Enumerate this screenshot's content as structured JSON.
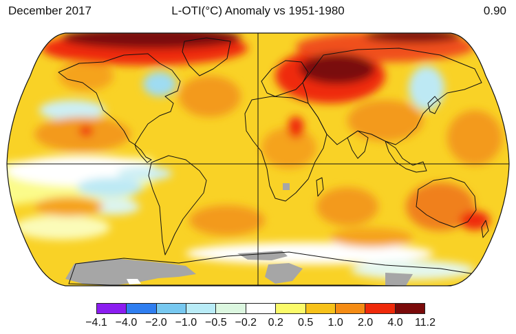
{
  "header": {
    "date": "December 2017",
    "title": "L-OTI(°C) Anomaly vs 1951-1980",
    "global_mean": "0.90"
  },
  "legend": {
    "colors": [
      "#8b1df0",
      "#2f7ef0",
      "#77c8f0",
      "#b9ecf7",
      "#dcf7e0",
      "#ffffff",
      "#fbfb6a",
      "#f7c21a",
      "#f58c14",
      "#ef2a0a",
      "#7a0a0a"
    ],
    "ticks": [
      "−4.1",
      "−4.0",
      "−2.0",
      "−1.0",
      "−0.5",
      "−0.2",
      "0.2",
      "0.5",
      "1.0",
      "2.0",
      "4.0",
      "11.2"
    ]
  },
  "map": {
    "projection": "robinson",
    "missing_data_color": "#a6a6a6",
    "land_outline_color": "#111111"
  }
}
